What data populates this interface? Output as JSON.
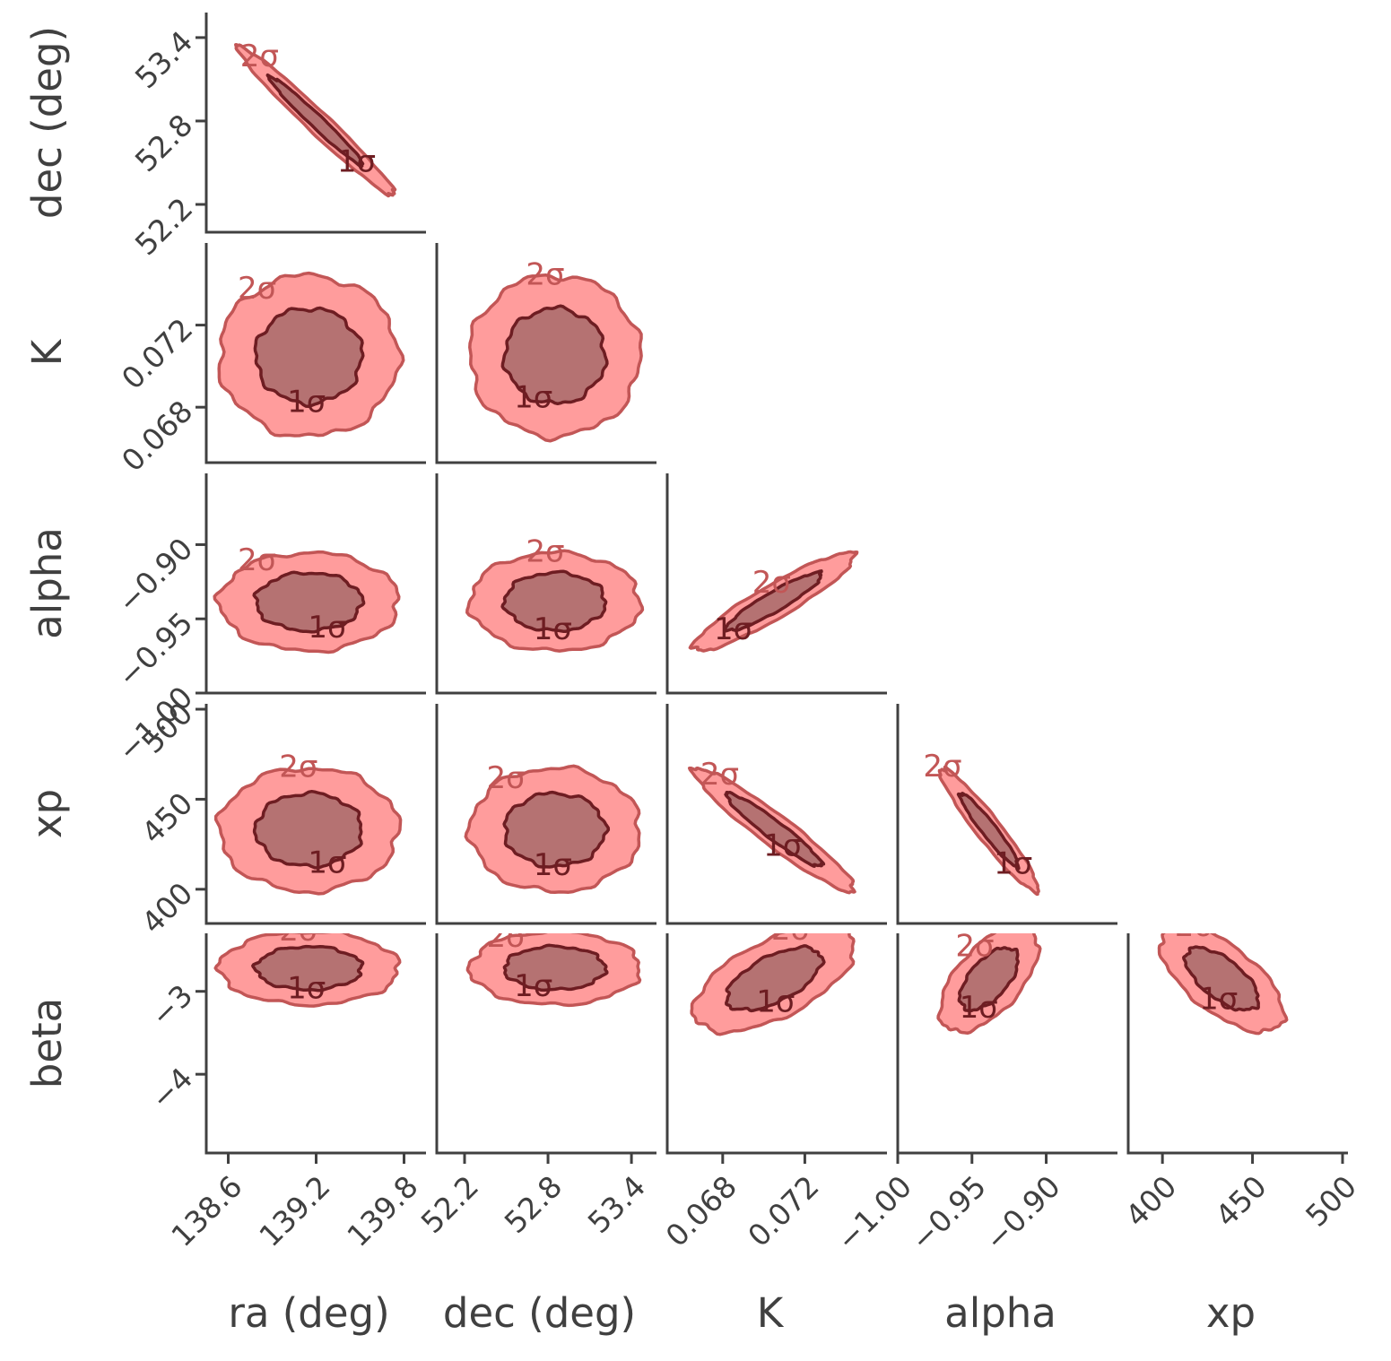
{
  "chart_data": {
    "type": "corner",
    "parameters": [
      {
        "name": "ra",
        "label": "ra (deg)",
        "range": [
          138.45,
          139.95
        ],
        "ticks": [
          138.6,
          139.2,
          139.8
        ],
        "tick_labels": [
          "138.6",
          "139.2",
          "139.8"
        ]
      },
      {
        "name": "dec",
        "label": "dec (deg)",
        "range": [
          52.0,
          53.58
        ],
        "ticks": [
          52.2,
          52.8,
          53.4
        ],
        "tick_labels": [
          "52.2",
          "52.8",
          "53.4"
        ]
      },
      {
        "name": "K",
        "label": "K",
        "range": [
          0.0653,
          0.076
        ],
        "ticks": [
          0.068,
          0.072
        ],
        "tick_labels": [
          "0.068",
          "0.072"
        ]
      },
      {
        "name": "alpha",
        "label": "alpha",
        "range": [
          -1.0,
          -0.852
        ],
        "ticks": [
          -1.0,
          -0.95,
          -0.9
        ],
        "tick_labels": [
          "−1.00",
          "−0.95",
          "−0.90"
        ]
      },
      {
        "name": "xp",
        "label": "xp",
        "range": [
          381,
          503
        ],
        "ticks": [
          400,
          450,
          500
        ],
        "tick_labels": [
          "400",
          "450",
          "500"
        ]
      },
      {
        "name": "beta",
        "label": "beta",
        "range": [
          -4.95,
          -2.3
        ],
        "ticks": [
          -3,
          -4
        ],
        "tick_labels": [
          "−3",
          "−4"
        ]
      }
    ],
    "contour_levels": [
      "1σ",
      "2σ"
    ],
    "panels": [
      {
        "x": "ra",
        "y": "dec",
        "center": [
          139.2,
          52.8
        ],
        "std": [
          0.22,
          0.22
        ],
        "rho": -0.98
      },
      {
        "x": "ra",
        "y": "K",
        "center": [
          139.15,
          0.0705
        ],
        "std": [
          0.25,
          0.0016
        ],
        "rho": 0.0
      },
      {
        "x": "dec",
        "y": "K",
        "center": [
          52.85,
          0.0705
        ],
        "std": [
          0.25,
          0.0016
        ],
        "rho": 0.0
      },
      {
        "x": "ra",
        "y": "alpha",
        "center": [
          139.15,
          -0.9385
        ],
        "std": [
          0.25,
          0.0135
        ],
        "rho": 0.0
      },
      {
        "x": "dec",
        "y": "alpha",
        "center": [
          52.85,
          -0.9385
        ],
        "std": [
          0.25,
          0.0135
        ],
        "rho": 0.0
      },
      {
        "x": "K",
        "y": "alpha",
        "center": [
          0.0705,
          -0.9385
        ],
        "std": [
          0.0016,
          0.0135
        ],
        "rho": 0.92
      },
      {
        "x": "ra",
        "y": "xp",
        "center": [
          139.15,
          433
        ],
        "std": [
          0.25,
          14
        ],
        "rho": 0.0
      },
      {
        "x": "dec",
        "y": "xp",
        "center": [
          52.85,
          433
        ],
        "std": [
          0.25,
          14
        ],
        "rho": 0.0
      },
      {
        "x": "K",
        "y": "xp",
        "center": [
          0.0705,
          433
        ],
        "std": [
          0.0016,
          14
        ],
        "rho": -0.95
      },
      {
        "x": "alpha",
        "y": "xp",
        "center": [
          -0.9385,
          433
        ],
        "std": [
          0.0135,
          14
        ],
        "rho": -0.95
      },
      {
        "x": "ra",
        "y": "beta",
        "center": [
          139.15,
          -2.72
        ],
        "std": [
          0.25,
          0.18
        ],
        "rho": 0.0
      },
      {
        "x": "dec",
        "y": "beta",
        "center": [
          52.85,
          -2.72
        ],
        "std": [
          0.25,
          0.18
        ],
        "rho": 0.0
      },
      {
        "x": "K",
        "y": "beta",
        "center": [
          0.0705,
          -2.85
        ],
        "std": [
          0.0016,
          0.26
        ],
        "rho": 0.6
      },
      {
        "x": "alpha",
        "y": "beta",
        "center": [
          -0.9385,
          -2.85
        ],
        "std": [
          0.0135,
          0.26
        ],
        "rho": 0.6
      },
      {
        "x": "xp",
        "y": "beta",
        "center": [
          433,
          -2.85
        ],
        "std": [
          14,
          0.26
        ],
        "rho": -0.65
      }
    ],
    "colors": {
      "outer_fill": "#ff9c9c",
      "outer_line": "#c25656",
      "inner_fill": "#b57272",
      "inner_line": "#6e1d22",
      "axes": "#404040"
    },
    "grid": false,
    "legend": "none"
  }
}
